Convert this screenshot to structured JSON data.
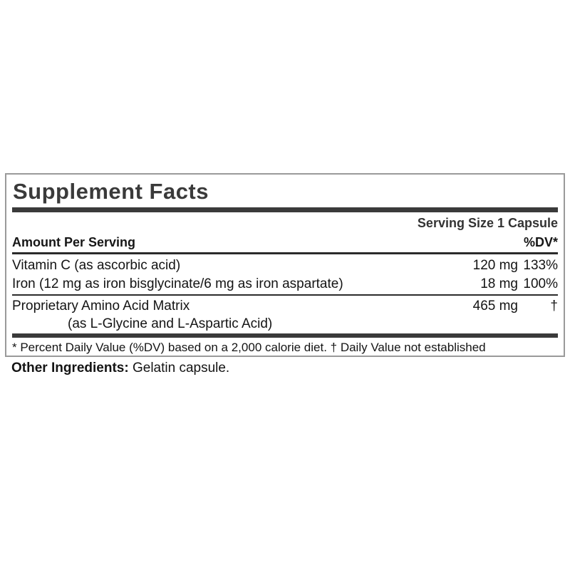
{
  "supplement_facts": {
    "title": "Supplement Facts",
    "serving_size": "Serving Size 1 Capsule",
    "amount_header": "Amount Per Serving",
    "dv_header": "%DV*",
    "rows": [
      {
        "name": "Vitamin C (as ascorbic acid)",
        "amount": "120 mg",
        "dv": "133%"
      },
      {
        "name": "Iron (12 mg as iron bisglycinate/6 mg as iron aspartate)",
        "amount": "18 mg",
        "dv": "100%"
      },
      {
        "name": "Proprietary Amino Acid Matrix",
        "sub_name": "(as L-Glycine and L-Aspartic Acid)",
        "amount": "465 mg",
        "dv": "†"
      }
    ],
    "footnote": "* Percent Daily Value (%DV) based on a 2,000 calorie diet. † Daily Value not established"
  },
  "other_ingredients": {
    "label": "Other Ingredients:",
    "value": "Gelatin capsule."
  },
  "colors": {
    "background": "#ffffff",
    "text": "#141414",
    "heading": "#3a3a3a",
    "thick_rule": "#3a3a3a",
    "thin_rule": "#2b2b2b",
    "box_border": "#9a9a9a"
  }
}
